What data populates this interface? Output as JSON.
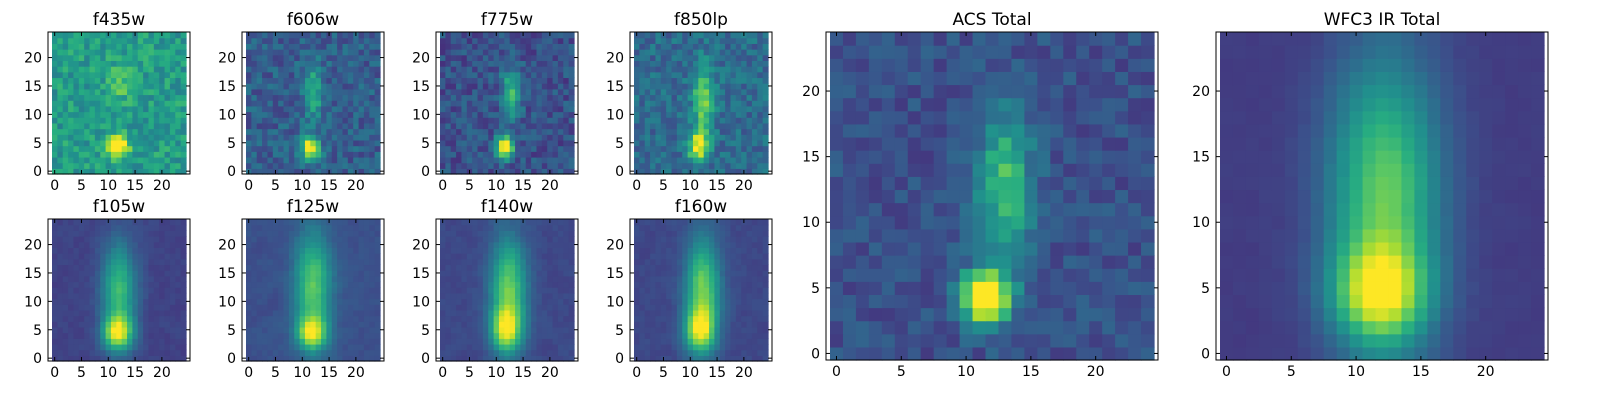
{
  "figure": {
    "background": "#ffffff",
    "colormap": "viridis"
  },
  "chart_data": [
    {
      "type": "heatmap",
      "title": "f435w",
      "colormap": "viridis",
      "xlim": [
        0,
        24
      ],
      "ylim": [
        0,
        24
      ],
      "x_ticks": [
        "0",
        "5",
        "10",
        "15",
        "20"
      ],
      "y_ticks": [
        "0",
        "5",
        "10",
        "15",
        "20"
      ],
      "grid": false,
      "pattern": "uniform bright background with noise; compact bright source centred near x=12, y=4; faint trail up to y≈18"
    },
    {
      "type": "heatmap",
      "title": "f606w",
      "colormap": "viridis",
      "xlim": [
        0,
        24
      ],
      "ylim": [
        0,
        24
      ],
      "x_ticks": [
        "0",
        "5",
        "10",
        "15",
        "20"
      ],
      "y_ticks": [
        "0",
        "5",
        "10",
        "15",
        "20"
      ],
      "grid": false,
      "pattern": "noisy dark background; bright compact source near x=11.5, y=4; faint vertical trail near x=12, y≈12–18"
    },
    {
      "type": "heatmap",
      "title": "f775w",
      "colormap": "viridis",
      "xlim": [
        0,
        24
      ],
      "ylim": [
        0,
        24
      ],
      "x_ticks": [
        "0",
        "5",
        "10",
        "15",
        "20"
      ],
      "y_ticks": [
        "0",
        "5",
        "10",
        "15",
        "20"
      ],
      "grid": false,
      "pattern": "noisy dark background; bright compact source near x=11.5, y=4; second knot near x=12.5, y=12–16"
    },
    {
      "type": "heatmap",
      "title": "f850lp",
      "colormap": "viridis",
      "xlim": [
        0,
        24
      ],
      "ylim": [
        0,
        24
      ],
      "x_ticks": [
        "0",
        "5",
        "10",
        "15",
        "20"
      ],
      "y_ticks": [
        "0",
        "5",
        "10",
        "15",
        "20"
      ],
      "grid": false,
      "pattern": "noisy background; bright elongated vertical source along x≈12 from y=2 to y=18"
    },
    {
      "type": "heatmap",
      "title": "f105w",
      "colormap": "viridis",
      "xlim": [
        0,
        24
      ],
      "ylim": [
        0,
        24
      ],
      "x_ticks": [
        "0",
        "5",
        "10",
        "15",
        "20"
      ],
      "y_ticks": [
        "0",
        "5",
        "10",
        "15",
        "20"
      ],
      "grid": false,
      "pattern": "smooth broad vertical band around x≈12; brightest near y=4 with second maximum near y=12"
    },
    {
      "type": "heatmap",
      "title": "f125w",
      "colormap": "viridis",
      "xlim": [
        0,
        24
      ],
      "ylim": [
        0,
        24
      ],
      "x_ticks": [
        "0",
        "5",
        "10",
        "15",
        "20"
      ],
      "y_ticks": [
        "0",
        "5",
        "10",
        "15",
        "20"
      ],
      "grid": false,
      "pattern": "smooth broad vertical band around x≈12; knots near y=4, y=10 and y=16"
    },
    {
      "type": "heatmap",
      "title": "f140w",
      "colormap": "viridis",
      "xlim": [
        0,
        24
      ],
      "ylim": [
        0,
        24
      ],
      "x_ticks": [
        "0",
        "5",
        "10",
        "15",
        "20"
      ],
      "y_ticks": [
        "0",
        "5",
        "10",
        "15",
        "20"
      ],
      "grid": false,
      "pattern": "smooth broad vertical band around x≈12; bright from y=3 to y=17"
    },
    {
      "type": "heatmap",
      "title": "f160w",
      "colormap": "viridis",
      "xlim": [
        0,
        24
      ],
      "ylim": [
        0,
        24
      ],
      "x_ticks": [
        "0",
        "5",
        "10",
        "15",
        "20"
      ],
      "y_ticks": [
        "0",
        "5",
        "10",
        "15",
        "20"
      ],
      "grid": false,
      "pattern": "smooth broad vertical band around x≈12; bright from y=2 to y=18"
    },
    {
      "type": "heatmap",
      "title": "ACS Total",
      "colormap": "viridis",
      "xlim": [
        0,
        24
      ],
      "ylim": [
        0,
        24
      ],
      "x_ticks": [
        "0",
        "5",
        "10",
        "15",
        "20"
      ],
      "y_ticks": [
        "0",
        "5",
        "10",
        "15",
        "20"
      ],
      "grid": false,
      "pattern": "noisy dark background; saturated bright source near x=11.5, y=4; elongated trail up through x≈12–14, y≈10–17"
    },
    {
      "type": "heatmap",
      "title": "WFC3 IR Total",
      "colormap": "viridis",
      "xlim": [
        0,
        24
      ],
      "ylim": [
        0,
        24
      ],
      "x_ticks": [
        "0",
        "5",
        "10",
        "15",
        "20"
      ],
      "y_ticks": [
        "0",
        "5",
        "10",
        "15",
        "20"
      ],
      "grid": false,
      "pattern": "smooth broad vertical band centred at x≈12; brightest near y=4, bright through y≈18; dark edges at x≈0 and x≈23"
    }
  ]
}
